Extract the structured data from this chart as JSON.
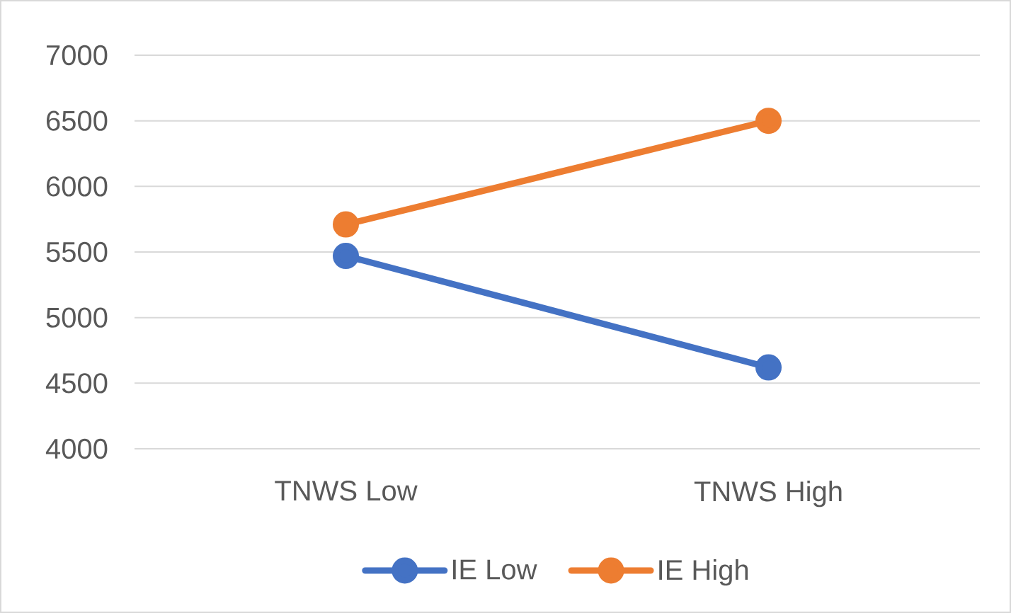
{
  "chart_data": {
    "type": "line",
    "categories": [
      "TNWS Low",
      "TNWS High"
    ],
    "series": [
      {
        "name": "IE Low",
        "color": "#4472c4",
        "values": [
          5470,
          4620
        ]
      },
      {
        "name": "IE High",
        "color": "#ed7d31",
        "values": [
          5710,
          6500
        ]
      }
    ],
    "ylim": [
      4000,
      7000
    ],
    "yticks": [
      4000,
      4500,
      5000,
      5500,
      6000,
      6500,
      7000
    ],
    "grid": "y",
    "legend": "bottom",
    "marker": "circle",
    "line_style": "solid"
  }
}
